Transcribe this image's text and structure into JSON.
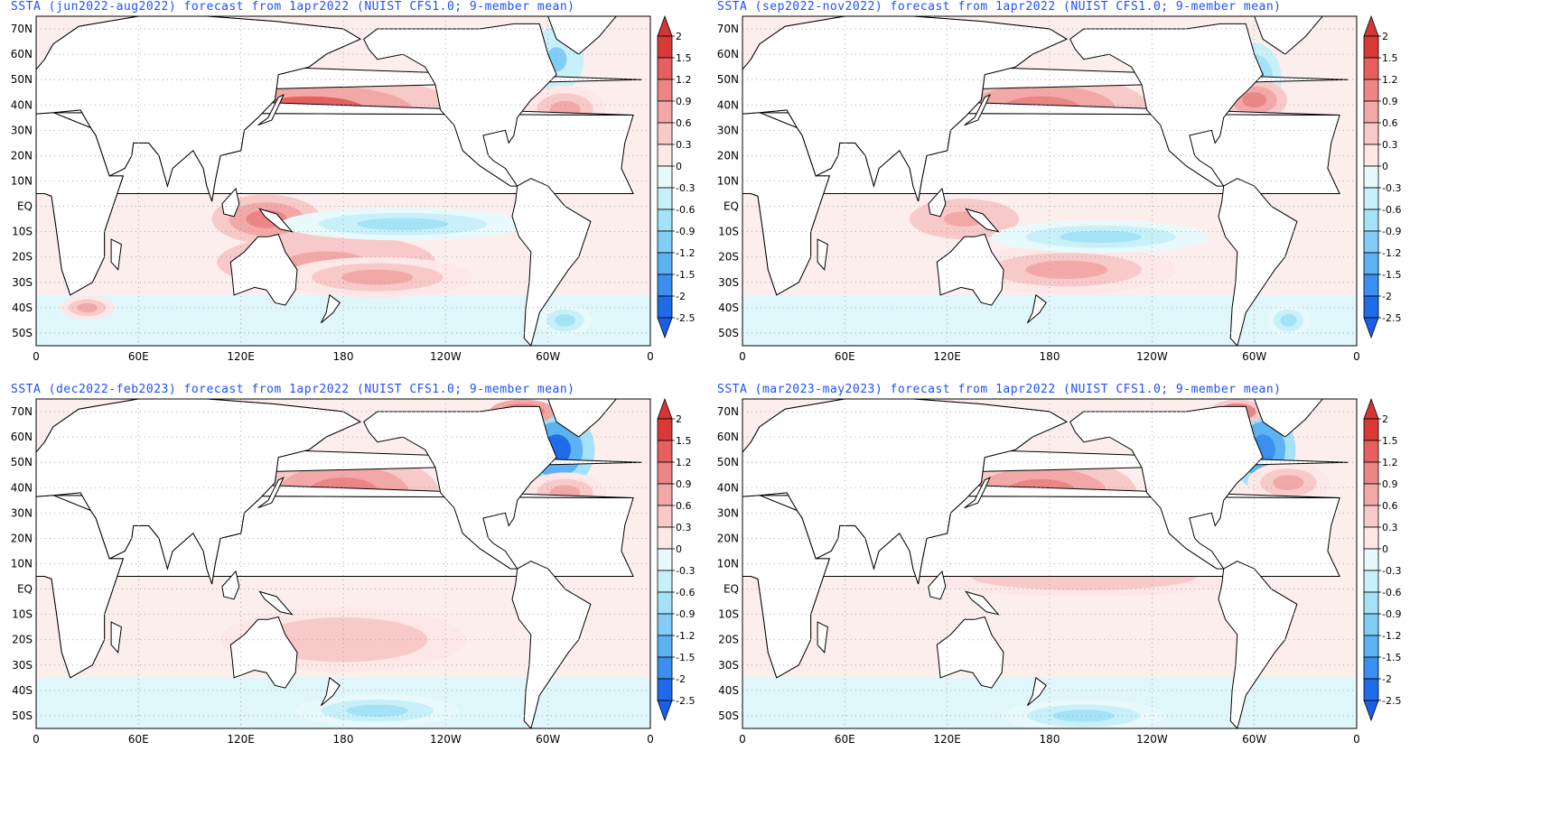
{
  "panels": [
    {
      "title": "SSTA (jun2022-aug2022) forecast from 1apr2022 (NUIST CFS1.0; 9-member mean)",
      "season": "jun2022-aug2022",
      "features": [
        {
          "type": "pos",
          "lon": 160,
          "lat": 38,
          "rx": 55,
          "ry": 9,
          "level": 1.3
        },
        {
          "type": "pos",
          "lon": 170,
          "lat": -22,
          "rx": 40,
          "ry": 7,
          "level": 0.9
        },
        {
          "type": "pos",
          "lon": 200,
          "lat": -28,
          "rx": 35,
          "ry": 5,
          "level": 0.8
        },
        {
          "type": "pos",
          "lon": 135,
          "lat": -5,
          "rx": 20,
          "ry": 6,
          "level": 1.0
        },
        {
          "type": "neg",
          "lon": 215,
          "lat": -7,
          "rx": 45,
          "ry": 4,
          "level": -0.8
        },
        {
          "type": "neg",
          "lon": 305,
          "lat": 58,
          "rx": 10,
          "ry": 8,
          "level": -0.9
        },
        {
          "type": "pos",
          "lon": 310,
          "lat": 38,
          "rx": 15,
          "ry": 6,
          "level": 0.8
        },
        {
          "type": "neg",
          "lon": 310,
          "lat": -45,
          "rx": 10,
          "ry": 4,
          "level": -0.8
        },
        {
          "type": "pos",
          "lon": 30,
          "lat": -40,
          "rx": 10,
          "ry": 3,
          "level": 0.7
        }
      ]
    },
    {
      "title": "SSTA (sep2022-nov2022) forecast from 1apr2022 (NUIST CFS1.0; 9-member mean)",
      "season": "sep2022-nov2022",
      "features": [
        {
          "type": "pos",
          "lon": 175,
          "lat": 38,
          "rx": 40,
          "ry": 9,
          "level": 1.0
        },
        {
          "type": "pos",
          "lon": 190,
          "lat": -25,
          "rx": 40,
          "ry": 6,
          "level": 0.8
        },
        {
          "type": "pos",
          "lon": 130,
          "lat": -5,
          "rx": 20,
          "ry": 5,
          "level": 0.9
        },
        {
          "type": "neg",
          "lon": 210,
          "lat": -12,
          "rx": 40,
          "ry": 4,
          "level": -0.7
        },
        {
          "type": "neg",
          "lon": 300,
          "lat": 50,
          "rx": 10,
          "ry": 9,
          "level": -1.3
        },
        {
          "type": "pos",
          "lon": 300,
          "lat": 42,
          "rx": 12,
          "ry": 5,
          "level": 1.0
        },
        {
          "type": "neg",
          "lon": 320,
          "lat": -45,
          "rx": 8,
          "ry": 4,
          "level": -0.8
        }
      ]
    },
    {
      "title": "SSTA (dec2022-feb2023) forecast from 1apr2022 (NUIST CFS1.0; 9-member mean)",
      "season": "dec2022-feb2023",
      "features": [
        {
          "type": "pos",
          "lon": 180,
          "lat": 38,
          "rx": 35,
          "ry": 10,
          "level": 1.1
        },
        {
          "type": "pos",
          "lon": 180,
          "lat": -20,
          "rx": 45,
          "ry": 8,
          "level": 0.5
        },
        {
          "type": "neg",
          "lon": 305,
          "lat": 55,
          "rx": 14,
          "ry": 10,
          "level": -2.0
        },
        {
          "type": "pos",
          "lon": 285,
          "lat": 70,
          "rx": 12,
          "ry": 3,
          "level": 1.8
        },
        {
          "type": "pos",
          "lon": 310,
          "lat": 38,
          "rx": 15,
          "ry": 5,
          "level": 0.7
        },
        {
          "type": "neg",
          "lon": 200,
          "lat": -48,
          "rx": 30,
          "ry": 4,
          "level": -0.6
        }
      ]
    },
    {
      "title": "SSTA (mar2023-may2023) forecast from 1apr2022 (NUIST CFS1.0; 9-member mean)",
      "season": "mar2023-may2023",
      "features": [
        {
          "type": "pos",
          "lon": 175,
          "lat": 38,
          "rx": 35,
          "ry": 9,
          "level": 1.0
        },
        {
          "type": "pos",
          "lon": 200,
          "lat": 5,
          "rx": 60,
          "ry": 5,
          "level": 0.5
        },
        {
          "type": "neg",
          "lon": 305,
          "lat": 55,
          "rx": 12,
          "ry": 10,
          "level": -1.9
        },
        {
          "type": "pos",
          "lon": 290,
          "lat": 70,
          "rx": 10,
          "ry": 3,
          "level": 1.6
        },
        {
          "type": "pos",
          "lon": 320,
          "lat": 42,
          "rx": 15,
          "ry": 5,
          "level": 0.8
        },
        {
          "type": "neg",
          "lon": 200,
          "lat": -50,
          "rx": 30,
          "ry": 4,
          "level": -0.7
        }
      ]
    }
  ],
  "map": {
    "lon_ticks": [
      0,
      60,
      120,
      180,
      240,
      300,
      360
    ],
    "lon_labels": [
      "0",
      "60E",
      "120E",
      "180",
      "120W",
      "60W",
      "0"
    ],
    "lat_ticks": [
      70,
      60,
      50,
      40,
      30,
      20,
      10,
      0,
      -10,
      -20,
      -30,
      -40,
      -50
    ],
    "lat_labels": [
      "70N",
      "60N",
      "50N",
      "40N",
      "30N",
      "20N",
      "10N",
      "EQ",
      "10S",
      "20S",
      "30S",
      "40S",
      "50S"
    ],
    "lat_range": [
      -55,
      75
    ]
  },
  "colorbar": {
    "labels": [
      "2",
      "1.5",
      "1.2",
      "0.9",
      "0.6",
      "0.3",
      "0",
      "-0.3",
      "-0.6",
      "-0.9",
      "-1.2",
      "-1.5",
      "-2",
      "-2.5"
    ],
    "colors": [
      "#d93a38",
      "#e6605f",
      "#ec8585",
      "#f3a8a8",
      "#f8c9c9",
      "#fde7e7",
      "#e7f9fb",
      "#c8f0f8",
      "#a4e2f7",
      "#82cdf6",
      "#5cb2f3",
      "#3a8ff0",
      "#1e6ce8"
    ],
    "top_arrow": "#d53535",
    "bottom_arrow": "#1a5fe6"
  }
}
